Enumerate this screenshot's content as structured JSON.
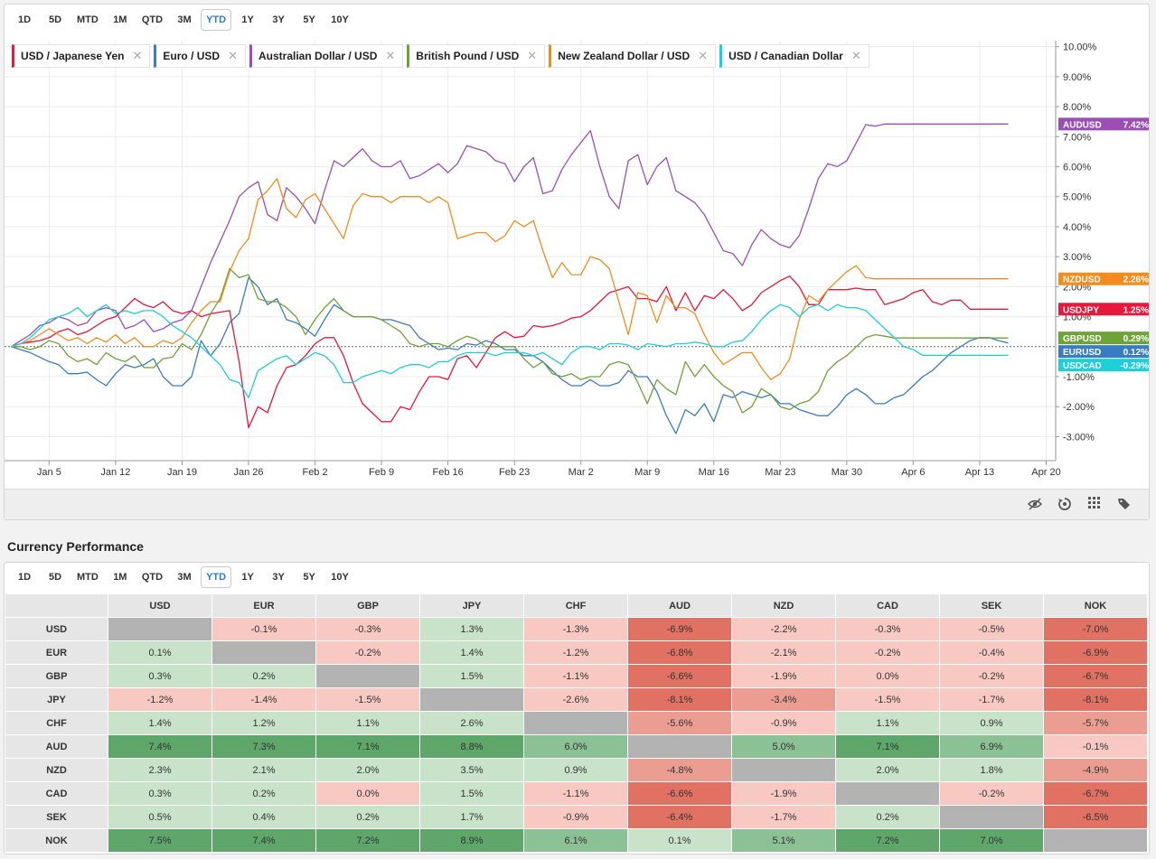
{
  "range_buttons": [
    "1D",
    "5D",
    "MTD",
    "1M",
    "QTD",
    "3M",
    "YTD",
    "1Y",
    "3Y",
    "5Y",
    "10Y"
  ],
  "range_active": "YTD",
  "legend": [
    {
      "label": "USD / Japanese Yen",
      "color": "#e8173b"
    },
    {
      "label": "Euro / USD",
      "color": "#3a7cc0"
    },
    {
      "label": "Australian Dollar / USD",
      "color": "#9b4fb5"
    },
    {
      "label": "British Pound / USD",
      "color": "#6ea338"
    },
    {
      "label": "New Zealand Dollar / USD",
      "color": "#f28c1f"
    },
    {
      "label": "USD / Canadian Dollar",
      "color": "#1fcfd8"
    }
  ],
  "chart_data": {
    "type": "line",
    "title": "",
    "xlabel": "",
    "ylabel": "",
    "ylim": [
      -3.8,
      10.2
    ],
    "y_ticks": [
      "10.00%",
      "9.00%",
      "8.00%",
      "7.00%",
      "6.00%",
      "5.00%",
      "4.00%",
      "3.00%",
      "2.00%",
      "1.00%",
      "-1.00%",
      "-2.00%",
      "-3.00%"
    ],
    "y_tick_values": [
      10,
      9,
      8,
      7,
      6,
      5,
      4,
      3,
      2,
      1,
      -1,
      -2,
      -3
    ],
    "x_ticks": [
      "Jan 5",
      "Jan 12",
      "Jan 19",
      "Jan 26",
      "Feb 2",
      "Feb 9",
      "Feb 16",
      "Feb 23",
      "Mar 2",
      "Mar 9",
      "Mar 16",
      "Mar 23",
      "Mar 30",
      "Apr 6",
      "Apr 13",
      "Apr 20"
    ],
    "x_tick_days": [
      5,
      12,
      19,
      26,
      33,
      40,
      47,
      54,
      61,
      68,
      75,
      82,
      89,
      96,
      103,
      110
    ],
    "x_days": [
      1,
      2,
      3,
      4,
      5,
      6,
      7,
      8,
      9,
      10,
      11,
      12,
      13,
      14,
      15,
      16,
      17,
      18,
      19,
      20,
      21,
      22,
      23,
      24,
      25,
      26,
      27,
      28,
      29,
      30,
      31,
      32,
      33,
      34,
      35,
      36,
      37,
      38,
      39,
      40,
      41,
      42,
      43,
      44,
      45,
      46,
      47,
      48,
      49,
      50,
      51,
      52,
      53,
      54,
      55,
      56,
      57,
      58,
      59,
      60,
      61,
      62,
      63,
      64,
      65,
      66,
      67,
      68,
      69,
      70,
      71,
      72,
      73,
      74,
      75,
      76,
      77,
      78,
      79,
      80,
      81,
      82,
      83,
      84,
      85,
      86,
      87,
      88,
      89,
      90,
      91,
      92,
      93,
      94,
      95,
      96,
      97,
      98,
      99,
      100,
      101,
      102,
      103,
      104,
      105,
      106
    ],
    "series": [
      {
        "name": "USD / Japanese Yen",
        "badge": "USDJPY",
        "last": "1.25%",
        "color": "#e8173b",
        "values": [
          0,
          0.1,
          0.15,
          0.2,
          0.3,
          0.5,
          0.6,
          0.4,
          0.5,
          0.7,
          0.9,
          1.0,
          1.3,
          1.6,
          1.4,
          1.3,
          1.5,
          1.2,
          1.1,
          1.2,
          1.0,
          1.1,
          1.15,
          1.2,
          -0.5,
          -2.7,
          -2.0,
          -2.2,
          -1.3,
          -0.7,
          -0.6,
          -0.3,
          0.1,
          0.3,
          0.3,
          -0.3,
          -1.2,
          -1.9,
          -2.2,
          -2.5,
          -2.5,
          -2.0,
          -2.1,
          -1.5,
          -1.0,
          -1.0,
          -1.1,
          -0.4,
          -0.3,
          -0.7,
          -0.2,
          0.3,
          0.5,
          0.3,
          0.35,
          0.7,
          0.65,
          0.7,
          0.8,
          0.95,
          1.0,
          1.2,
          1.5,
          1.8,
          1.9,
          2.0,
          1.6,
          1.6,
          1.5,
          2.0,
          1.2,
          1.8,
          1.2,
          1.7,
          1.6,
          1.9,
          1.6,
          1.2,
          1.4,
          1.8,
          2.0,
          2.2,
          2.35,
          2.0,
          1.4,
          1.4,
          1.9,
          1.9,
          1.9,
          1.95,
          1.9,
          1.9,
          1.4,
          1.5,
          1.6,
          1.8,
          1.9,
          1.5,
          1.4,
          1.55,
          1.55,
          1.25,
          1.25,
          1.25,
          1.25,
          1.25
        ]
      },
      {
        "name": "Euro / USD",
        "badge": "EURUSD",
        "last": "0.12%",
        "color": "#3a7cc0",
        "values": [
          0,
          -0.1,
          -0.2,
          -0.35,
          -0.5,
          -0.6,
          -0.9,
          -0.9,
          -0.85,
          -1.1,
          -1.3,
          -0.9,
          -0.6,
          -0.7,
          -0.6,
          -0.4,
          -1.0,
          -1.3,
          -1.3,
          -1.0,
          0.2,
          -0.3,
          0.1,
          0.8,
          1.1,
          2.3,
          2.0,
          1.4,
          1.6,
          0.9,
          0.8,
          0.6,
          0.35,
          0.9,
          1.4,
          1.2,
          1.0,
          1.0,
          1.0,
          0.9,
          0.9,
          0.8,
          0.7,
          0.3,
          0.1,
          -0.1,
          -0.05,
          -0.1,
          0.1,
          0.05,
          0.2,
          0.1,
          -0.1,
          -0.1,
          -0.3,
          -0.3,
          -0.5,
          -0.8,
          -1.1,
          -1.3,
          -1.3,
          -1.1,
          -1.3,
          -1.3,
          -1.2,
          -0.8,
          -1.0,
          -1.0,
          -1.5,
          -2.3,
          -2.9,
          -2.1,
          -2.3,
          -1.9,
          -2.5,
          -1.6,
          -1.7,
          -1.5,
          -1.6,
          -1.7,
          -1.6,
          -1.9,
          -1.9,
          -2.1,
          -2.2,
          -2.3,
          -2.3,
          -2.0,
          -1.6,
          -1.4,
          -1.6,
          -1.9,
          -1.9,
          -1.7,
          -1.6,
          -1.3,
          -1.0,
          -0.8,
          -0.5,
          -0.2,
          0.0,
          0.2,
          0.3,
          0.3,
          0.2,
          0.12
        ]
      },
      {
        "name": "Australian Dollar / USD",
        "badge": "AUDUSD",
        "last": "7.42%",
        "color": "#9b4fb5",
        "values": [
          0,
          0.2,
          0.4,
          0.7,
          0.8,
          1.0,
          0.9,
          0.7,
          0.8,
          1.2,
          1.3,
          1.2,
          0.6,
          0.7,
          0.9,
          0.5,
          0.6,
          0.8,
          0.9,
          1.2,
          2.0,
          2.8,
          3.5,
          4.2,
          5.0,
          5.3,
          5.5,
          4.4,
          4.2,
          5.3,
          5.0,
          4.6,
          4.1,
          5.2,
          6.2,
          6.0,
          6.3,
          6.6,
          6.2,
          6.0,
          6.0,
          6.2,
          5.6,
          5.7,
          5.9,
          6.1,
          5.8,
          6.1,
          6.7,
          6.6,
          6.5,
          6.2,
          6.1,
          5.5,
          6.0,
          6.3,
          5.1,
          5.2,
          5.9,
          6.4,
          6.8,
          7.2,
          6.0,
          5.0,
          4.6,
          6.2,
          6.4,
          5.4,
          6.0,
          6.3,
          5.2,
          5.0,
          4.8,
          4.4,
          3.8,
          3.2,
          3.1,
          2.7,
          3.4,
          3.9,
          3.6,
          3.4,
          3.3,
          3.7,
          4.6,
          5.6,
          6.1,
          6.0,
          6.2,
          6.8,
          7.4,
          7.35,
          7.42,
          7.42,
          7.42,
          7.42,
          7.42,
          7.42,
          7.42,
          7.42,
          7.42,
          7.42,
          7.42,
          7.42,
          7.42,
          7.42
        ]
      },
      {
        "name": "British Pound / USD",
        "badge": "GBPUSD",
        "last": "0.29%",
        "color": "#6ea338",
        "values": [
          0,
          0.0,
          -0.1,
          0.0,
          0.2,
          0.1,
          -0.3,
          -0.5,
          -0.4,
          -0.6,
          -0.2,
          -0.4,
          -0.5,
          -0.3,
          -0.7,
          -0.7,
          -0.4,
          -0.35,
          0.1,
          -0.1,
          0.4,
          1.1,
          1.6,
          2.6,
          2.3,
          2.4,
          1.6,
          1.5,
          1.5,
          1.3,
          1.0,
          0.4,
          0.9,
          1.3,
          1.6,
          1.2,
          1.0,
          1.0,
          1.0,
          0.9,
          0.7,
          0.5,
          0.1,
          0.0,
          0.1,
          0.1,
          0.0,
          0.2,
          0.35,
          0.25,
          0.0,
          0.0,
          0.0,
          0.0,
          -0.4,
          -0.7,
          -0.5,
          -0.9,
          -1.0,
          -0.9,
          -1.1,
          -1.0,
          -1.0,
          -0.6,
          -0.5,
          -0.6,
          -1.2,
          -1.9,
          -1.1,
          -1.4,
          -1.6,
          -0.5,
          -1.0,
          -0.6,
          -1.0,
          -1.3,
          -1.5,
          -2.2,
          -2.0,
          -1.4,
          -1.6,
          -2.0,
          -2.1,
          -1.9,
          -1.8,
          -1.5,
          -0.8,
          -0.5,
          -0.3,
          0.0,
          0.3,
          0.4,
          0.35,
          0.29,
          0.29,
          0.29,
          0.29,
          0.29,
          0.29,
          0.29,
          0.29,
          0.29,
          0.29,
          0.29,
          0.29,
          0.29
        ]
      },
      {
        "name": "New Zealand Dollar / USD",
        "badge": "NZDUSD",
        "last": "2.26%",
        "color": "#f28c1f",
        "values": [
          0,
          0.1,
          0.2,
          0.4,
          0.6,
          0.4,
          0.2,
          0.3,
          0.1,
          0.3,
          0.15,
          0.4,
          0.1,
          0.3,
          0.0,
          0.0,
          0.2,
          0.1,
          0.3,
          0.8,
          1.2,
          1.5,
          1.5,
          2.5,
          3.2,
          3.6,
          4.9,
          5.2,
          5.6,
          4.6,
          4.3,
          4.9,
          5.1,
          4.6,
          4.1,
          3.6,
          4.7,
          5.1,
          5.0,
          5.0,
          4.8,
          5.0,
          5.0,
          5.0,
          4.8,
          5.0,
          4.8,
          3.6,
          3.7,
          3.8,
          3.8,
          3.5,
          3.7,
          4.2,
          4.0,
          4.2,
          3.2,
          2.3,
          2.8,
          2.4,
          2.4,
          3.0,
          2.9,
          2.6,
          1.5,
          0.4,
          1.8,
          1.7,
          0.8,
          1.7,
          1.3,
          1.3,
          1.1,
          0.4,
          -0.2,
          -0.6,
          -0.4,
          -0.2,
          -0.2,
          -0.7,
          -1.1,
          -0.9,
          -0.4,
          0.9,
          1.7,
          1.5,
          1.9,
          2.2,
          2.5,
          2.7,
          2.3,
          2.26,
          2.26,
          2.26,
          2.26,
          2.26,
          2.26,
          2.26,
          2.26,
          2.26,
          2.26,
          2.26,
          2.26,
          2.26,
          2.26,
          2.26
        ]
      },
      {
        "name": "USD / Canadian Dollar",
        "badge": "USDCAD",
        "last": "-0.29%",
        "color": "#1fcfd8",
        "values": [
          0,
          0.1,
          0.3,
          0.6,
          0.9,
          1.0,
          1.1,
          1.3,
          1.0,
          1.2,
          1.4,
          1.1,
          1.2,
          1.1,
          1.2,
          1.2,
          1.0,
          0.7,
          0.5,
          0.3,
          0.0,
          -0.3,
          -0.6,
          -1.1,
          -1.2,
          -1.7,
          -0.8,
          -0.6,
          -0.4,
          -0.3,
          -0.6,
          -0.4,
          -0.2,
          -0.3,
          -0.6,
          -1.2,
          -1.2,
          -1.0,
          -0.9,
          -0.8,
          -0.9,
          -0.7,
          -0.6,
          -0.6,
          -0.7,
          -0.5,
          -0.5,
          -0.3,
          -0.2,
          -0.2,
          -0.2,
          -0.3,
          -0.2,
          -0.2,
          -0.2,
          -0.3,
          -0.2,
          -0.4,
          -0.6,
          -0.2,
          0.0,
          0.0,
          -0.1,
          0.1,
          0.1,
          0.05,
          -0.1,
          0.1,
          0.05,
          0.0,
          0.1,
          0.1,
          0.15,
          0.1,
          0.0,
          0.0,
          0.15,
          0.2,
          0.5,
          0.9,
          1.2,
          1.4,
          1.3,
          1.0,
          1.3,
          1.4,
          1.2,
          1.4,
          1.3,
          1.3,
          1.2,
          0.9,
          0.6,
          0.3,
          0.0,
          -0.1,
          -0.29,
          -0.29,
          -0.29,
          -0.29,
          -0.29,
          -0.29,
          -0.29,
          -0.29,
          -0.29,
          -0.29
        ]
      }
    ]
  },
  "table": {
    "title": "Currency Performance",
    "columns": [
      "USD",
      "EUR",
      "GBP",
      "JPY",
      "CHF",
      "AUD",
      "NZD",
      "CAD",
      "SEK",
      "NOK"
    ],
    "rows": [
      {
        "label": "USD",
        "cells": [
          null,
          "-0.1%",
          "-0.3%",
          "1.3%",
          "-1.3%",
          "-6.9%",
          "-2.2%",
          "-0.3%",
          "-0.5%",
          "-7.0%"
        ]
      },
      {
        "label": "EUR",
        "cells": [
          "0.1%",
          null,
          "-0.2%",
          "1.4%",
          "-1.2%",
          "-6.8%",
          "-2.1%",
          "-0.2%",
          "-0.4%",
          "-6.9%"
        ]
      },
      {
        "label": "GBP",
        "cells": [
          "0.3%",
          "0.2%",
          null,
          "1.5%",
          "-1.1%",
          "-6.6%",
          "-1.9%",
          "0.0%",
          "-0.2%",
          "-6.7%"
        ]
      },
      {
        "label": "JPY",
        "cells": [
          "-1.2%",
          "-1.4%",
          "-1.5%",
          null,
          "-2.6%",
          "-8.1%",
          "-3.4%",
          "-1.5%",
          "-1.7%",
          "-8.1%"
        ]
      },
      {
        "label": "CHF",
        "cells": [
          "1.4%",
          "1.2%",
          "1.1%",
          "2.6%",
          null,
          "-5.6%",
          "-0.9%",
          "1.1%",
          "0.9%",
          "-5.7%"
        ]
      },
      {
        "label": "AUD",
        "cells": [
          "7.4%",
          "7.3%",
          "7.1%",
          "8.8%",
          "6.0%",
          null,
          "5.0%",
          "7.1%",
          "6.9%",
          "-0.1%"
        ]
      },
      {
        "label": "NZD",
        "cells": [
          "2.3%",
          "2.1%",
          "2.0%",
          "3.5%",
          "0.9%",
          "-4.8%",
          null,
          "2.0%",
          "1.8%",
          "-4.9%"
        ]
      },
      {
        "label": "CAD",
        "cells": [
          "0.3%",
          "0.2%",
          "0.0%",
          "1.5%",
          "-1.1%",
          "-6.6%",
          "-1.9%",
          null,
          "-0.2%",
          "-6.7%"
        ]
      },
      {
        "label": "SEK",
        "cells": [
          "0.5%",
          "0.4%",
          "0.2%",
          "1.7%",
          "-0.9%",
          "-6.4%",
          "-1.7%",
          "0.2%",
          null,
          "-6.5%"
        ]
      },
      {
        "label": "NOK",
        "cells": [
          "7.5%",
          "7.4%",
          "7.2%",
          "8.9%",
          "6.1%",
          "0.1%",
          "5.1%",
          "7.2%",
          "7.0%",
          null
        ]
      }
    ]
  },
  "colors": {
    "neg_strong": "#e07163",
    "neg_mid": "#eb9d92",
    "neg_light": "#f8c9c3",
    "pos_strong": "#5ea66a",
    "pos_mid": "#8cc095",
    "pos_light": "#c8e3c9",
    "diag": "#b3b3b3"
  }
}
